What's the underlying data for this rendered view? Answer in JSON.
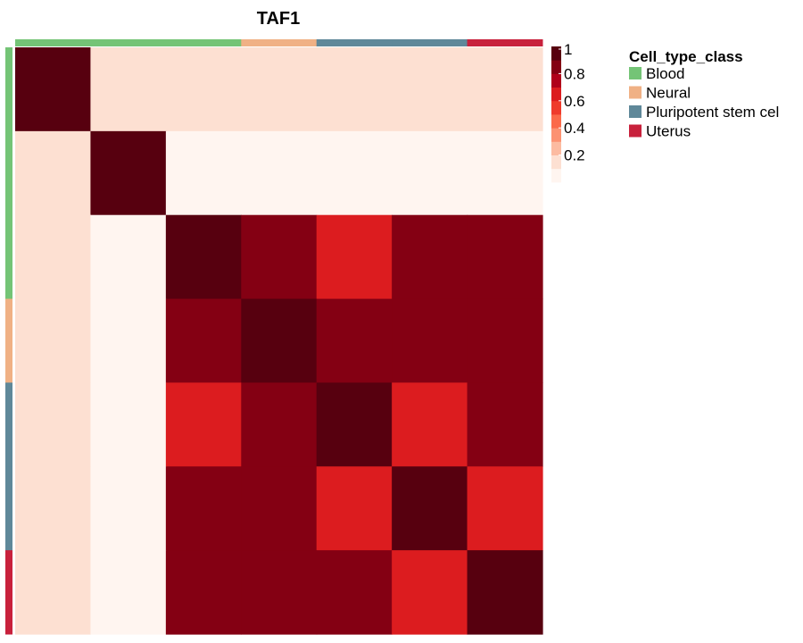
{
  "chart_data": {
    "type": "heatmap",
    "title": "TAF1",
    "n": 7,
    "matrix": [
      [
        1.0,
        0.15,
        0.15,
        0.15,
        0.15,
        0.15,
        0.15
      ],
      [
        0.15,
        1.0,
        0.05,
        0.05,
        0.05,
        0.05,
        0.05
      ],
      [
        0.15,
        0.05,
        1.0,
        0.85,
        0.7,
        0.85,
        0.85
      ],
      [
        0.15,
        0.05,
        0.85,
        1.0,
        0.85,
        0.85,
        0.85
      ],
      [
        0.15,
        0.05,
        0.7,
        0.85,
        1.0,
        0.7,
        0.85
      ],
      [
        0.15,
        0.05,
        0.85,
        0.85,
        0.7,
        1.0,
        0.7
      ],
      [
        0.15,
        0.05,
        0.85,
        0.85,
        0.85,
        0.7,
        1.0
      ]
    ],
    "annotation_classes": [
      "Blood",
      "Blood",
      "Blood",
      "Neural",
      "Pluripotent stem cel",
      "Pluripotent stem cel",
      "Uterus"
    ],
    "legend": {
      "title": "Cell_type_class",
      "items": [
        {
          "label": "Blood",
          "color": "#74c476"
        },
        {
          "label": "Neural",
          "color": "#f0b185"
        },
        {
          "label": "Pluripotent stem cel",
          "color": "#5f8899"
        },
        {
          "label": "Uterus",
          "color": "#c8213c"
        }
      ]
    },
    "colorbar": {
      "range": [
        0,
        1
      ],
      "ticks": [
        {
          "value": 1,
          "label": "1"
        },
        {
          "value": 0.8,
          "label": "0.8"
        },
        {
          "value": 0.6,
          "label": "0.6"
        },
        {
          "value": 0.4,
          "label": "0.4"
        },
        {
          "value": 0.2,
          "label": "0.2"
        }
      ],
      "colors": [
        "#fff5f0",
        "#fde0d2",
        "#fcbba1",
        "#fc9272",
        "#fb6a4a",
        "#ef3b2c",
        "#dc1c1f",
        "#b0001a",
        "#840013",
        "#57000f"
      ]
    },
    "grid": false,
    "legend_position": "right"
  }
}
